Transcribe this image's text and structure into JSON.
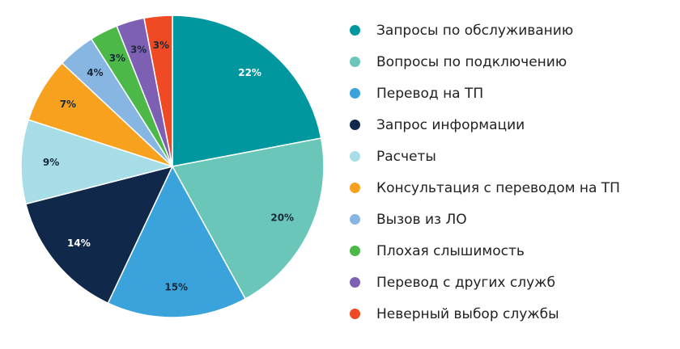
{
  "chart_data": {
    "type": "pie",
    "legend_position": "right",
    "start_angle_deg": 0,
    "direction": "clockwise",
    "slices": [
      {
        "label": "Запросы по обслуживанию",
        "value": 22,
        "value_label": "22%",
        "color": "#00979f",
        "label_color": "#ffffff"
      },
      {
        "label": "Вопросы по подключению",
        "value": 20,
        "value_label": "20%",
        "color": "#6ac6b9",
        "label_color": "#1a2a3a"
      },
      {
        "label": "Перевод на ТП",
        "value": 15,
        "value_label": "15%",
        "color": "#3ba3dc",
        "label_color": "#1a2a3a"
      },
      {
        "label": "Запрос информации",
        "value": 14,
        "value_label": "14%",
        "color": "#10284a",
        "label_color": "#ffffff"
      },
      {
        "label": "Расчеты",
        "value": 9,
        "value_label": "9%",
        "color": "#a6dde6",
        "label_color": "#1a2a3a"
      },
      {
        "label": "Консультация с переводом на ТП",
        "value": 7,
        "value_label": "7%",
        "color": "#f7a11f",
        "label_color": "#1a2a3a"
      },
      {
        "label": "Вызов из ЛО",
        "value": 4,
        "value_label": "4%",
        "color": "#87b6e2",
        "label_color": "#1a2a3a"
      },
      {
        "label": "Плохая слышимость",
        "value": 3,
        "value_label": "3%",
        "color": "#4bb848",
        "label_color": "#1a2a3a"
      },
      {
        "label": "Перевод с других служб",
        "value": 3,
        "value_label": "3%",
        "color": "#7d5fb3",
        "label_color": "#1a2a3a"
      },
      {
        "label": "Неверный выбор службы",
        "value": 3,
        "value_label": "3%",
        "color": "#ef4a23",
        "label_color": "#1a2a3a"
      }
    ]
  }
}
